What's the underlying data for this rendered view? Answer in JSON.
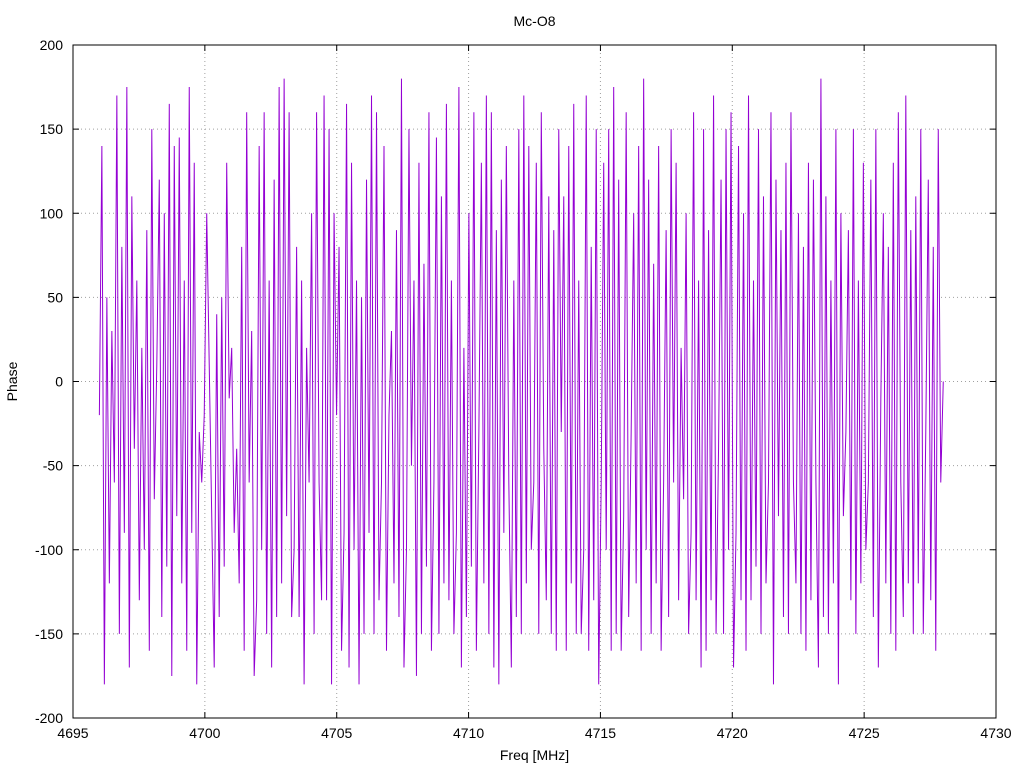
{
  "chart_data": {
    "type": "line",
    "title": "Mc-O8",
    "xlabel": "Freq [MHz]",
    "ylabel": "Phase",
    "xlim": [
      4695,
      4730
    ],
    "ylim": [
      -200,
      200
    ],
    "x_ticks": [
      4695,
      4700,
      4705,
      4710,
      4715,
      4720,
      4725,
      4730
    ],
    "y_ticks": [
      -200,
      -150,
      -100,
      -50,
      0,
      50,
      100,
      150,
      200
    ],
    "grid": true,
    "series_color": "#9400d3",
    "series": [
      {
        "x_start": 4696.0,
        "x_end": 4728.0,
        "values": [
          -20,
          140,
          -180,
          50,
          -120,
          30,
          -60,
          170,
          -150,
          80,
          -90,
          175,
          -170,
          110,
          -40,
          60,
          -130,
          20,
          -100,
          90,
          -160,
          150,
          -70,
          10,
          120,
          -140,
          100,
          -110,
          165,
          -175,
          140,
          -80,
          145,
          -120,
          60,
          -160,
          175,
          -90,
          130,
          -180,
          -30,
          -60,
          -20,
          100,
          10,
          -80,
          -170,
          40,
          -140,
          50,
          -110,
          130,
          -10,
          20,
          -90,
          -40,
          -120,
          80,
          -160,
          160,
          -60,
          30,
          -175,
          -130,
          140,
          -100,
          160,
          -150,
          60,
          -170,
          120,
          -140,
          175,
          -120,
          180,
          -80,
          160,
          -140,
          -100,
          80,
          -140,
          60,
          -180,
          20,
          -60,
          100,
          -150,
          160,
          -60,
          -130,
          170,
          -130,
          150,
          -180,
          100,
          -20,
          80,
          -160,
          -90,
          165,
          -170,
          130,
          -100,
          60,
          -180,
          50,
          -150,
          120,
          -90,
          170,
          -150,
          160,
          -130,
          -60,
          140,
          -160,
          -20,
          30,
          -120,
          90,
          -140,
          180,
          -170,
          -100,
          150,
          -50,
          60,
          -175,
          130,
          -150,
          70,
          -110,
          160,
          -160,
          -60,
          145,
          -150,
          110,
          -120,
          165,
          -130,
          60,
          -150,
          -90,
          175,
          -170,
          20,
          -140,
          100,
          -110,
          160,
          -160,
          -30,
          130,
          -120,
          170,
          -150,
          160,
          -170,
          90,
          -180,
          120,
          -90,
          140,
          -60,
          -170,
          60,
          -140,
          150,
          -150,
          170,
          -120,
          140,
          -100,
          -60,
          130,
          -150,
          160,
          -40,
          -130,
          110,
          -150,
          90,
          -160,
          150,
          -30,
          110,
          -160,
          140,
          -120,
          165,
          -150,
          60,
          -150,
          -100,
          170,
          -160,
          80,
          -130,
          150,
          -180,
          -60,
          130,
          -100,
          150,
          -160,
          175,
          -150,
          120,
          -160,
          -80,
          160,
          -140,
          -30,
          100,
          -120,
          140,
          -160,
          180,
          -100,
          120,
          -150,
          70,
          -120,
          140,
          -160,
          -60,
          90,
          -140,
          150,
          -60,
          130,
          -130,
          20,
          -70,
          100,
          -150,
          -90,
          160,
          -130,
          60,
          -170,
          150,
          -160,
          90,
          -130,
          170,
          -150,
          -40,
          120,
          -150,
          150,
          -100,
          160,
          -170,
          -90,
          140,
          -130,
          100,
          -160,
          170,
          -130,
          60,
          -110,
          150,
          -150,
          110,
          -120,
          -60,
          160,
          -180,
          120,
          -80,
          90,
          -140,
          130,
          -150,
          160,
          -60,
          -120,
          100,
          -150,
          80,
          -160,
          130,
          -130,
          120,
          -60,
          -170,
          180,
          -140,
          110,
          -150,
          60,
          -120,
          150,
          -180,
          100,
          -80,
          -30,
          90,
          -130,
          150,
          -150,
          60,
          -120,
          130,
          -100,
          -60,
          120,
          -140,
          150,
          -170,
          -10,
          100,
          -120,
          80,
          -150,
          130,
          -160,
          160,
          -60,
          -140,
          170,
          -120,
          90,
          -150,
          110,
          -120,
          150,
          -150,
          -30,
          120,
          -130,
          80,
          -160,
          150,
          -60,
          0
        ]
      }
    ]
  }
}
